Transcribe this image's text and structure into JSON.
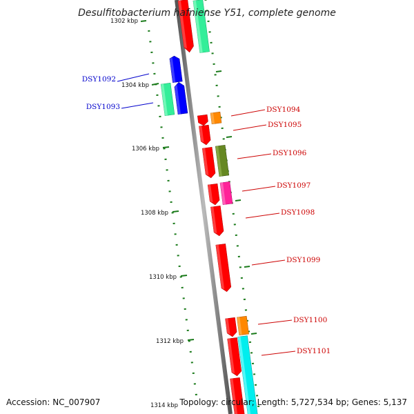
{
  "title": "Desulfitobacterium hafniense Y51, complete genome",
  "footer": {
    "accession": "Accession: NC_007907",
    "topology": "Topology: circular; Length: 5,727,534 bp; Genes: 5,137"
  },
  "ticks": [
    {
      "label": "1302 kbp"
    },
    {
      "label": "1304 kbp"
    },
    {
      "label": "1306 kbp"
    },
    {
      "label": "1308 kbp"
    },
    {
      "label": "1310 kbp"
    },
    {
      "label": "1312 kbp"
    },
    {
      "label": "1314 kbp"
    }
  ],
  "gene_labels": [
    {
      "name": "DSY1092",
      "color": "#0000cc"
    },
    {
      "name": "DSY1093",
      "color": "#0000cc"
    },
    {
      "name": "DSY1094",
      "color": "#cc0000"
    },
    {
      "name": "DSY1095",
      "color": "#cc0000"
    },
    {
      "name": "DSY1096",
      "color": "#cc0000"
    },
    {
      "name": "DSY1097",
      "color": "#cc0000"
    },
    {
      "name": "DSY1098",
      "color": "#cc0000"
    },
    {
      "name": "DSY1099",
      "color": "#cc0000"
    },
    {
      "name": "DSY1100",
      "color": "#cc0000"
    },
    {
      "name": "DSY1101",
      "color": "#cc0000"
    }
  ],
  "colors": {
    "backbone": "#888888",
    "tick_marks": "#1a7a1a",
    "red_gene": "#ff0000",
    "blue_gene": "#0000ff",
    "teal_gene": "#33ee99",
    "orange_gene": "#ff8800",
    "olive_gene": "#668822",
    "magenta_gene": "#ff2299",
    "cyan_gene": "#00eeee"
  }
}
